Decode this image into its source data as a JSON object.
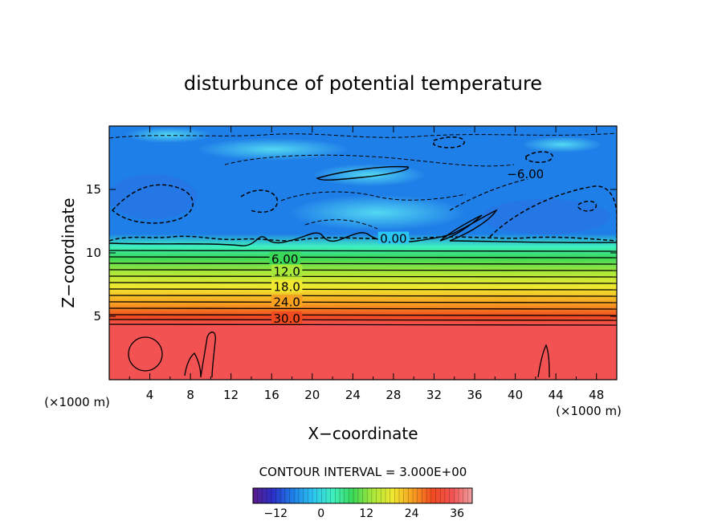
{
  "chart_data": {
    "type": "heatmap",
    "title": "disturbunce of potential temperature",
    "xlabel": "X−coordinate",
    "ylabel": "Z−coordinate",
    "x_unit_label": "(×1000 m)",
    "y_unit_label": "(×1000 m)",
    "xlim": [
      0,
      50
    ],
    "ylim": [
      0,
      20
    ],
    "x_ticks": [
      4,
      8,
      12,
      16,
      20,
      24,
      28,
      32,
      36,
      40,
      44,
      48
    ],
    "y_ticks": [
      5,
      10,
      15
    ],
    "contour_interval_text": "CONTOUR INTERVAL = 3.000E+00",
    "contour_interval": 3.0,
    "contour_labels": [
      {
        "text": "30.0",
        "x": 17.5,
        "z": 4.8
      },
      {
        "text": "24.0",
        "x": 17.5,
        "z": 6.1
      },
      {
        "text": "18.0",
        "x": 17.5,
        "z": 7.3
      },
      {
        "text": "12.0",
        "x": 17.5,
        "z": 8.5
      },
      {
        "text": "6.00",
        "x": 17.3,
        "z": 9.5
      },
      {
        "text": "0.00",
        "x": 28.0,
        "z": 11.1
      },
      {
        "text": "−6.00",
        "x": 41.0,
        "z": 16.2
      }
    ],
    "profile": [
      {
        "z": 0.0,
        "value": 34
      },
      {
        "z": 4.3,
        "value": 34
      },
      {
        "z": 5.0,
        "value": 30
      },
      {
        "z": 6.0,
        "value": 24
      },
      {
        "z": 7.3,
        "value": 18
      },
      {
        "z": 8.5,
        "value": 12
      },
      {
        "z": 9.6,
        "value": 6
      },
      {
        "z": 10.5,
        "value": 1
      },
      {
        "z": 11.5,
        "value": -5
      },
      {
        "z": 15.0,
        "value": -7
      },
      {
        "z": 20.0,
        "value": -6
      }
    ],
    "colorbar": {
      "range": [
        -18,
        40
      ],
      "ticks": [
        -12,
        0,
        12,
        24,
        36
      ],
      "colors": [
        "#5a1a8a",
        "#2a30c8",
        "#1f7fe8",
        "#2cc4f0",
        "#3ef0c0",
        "#3ad858",
        "#a8e83a",
        "#f0e830",
        "#f8a020",
        "#f04a20",
        "#f25252",
        "#f0a0a0"
      ]
    }
  }
}
